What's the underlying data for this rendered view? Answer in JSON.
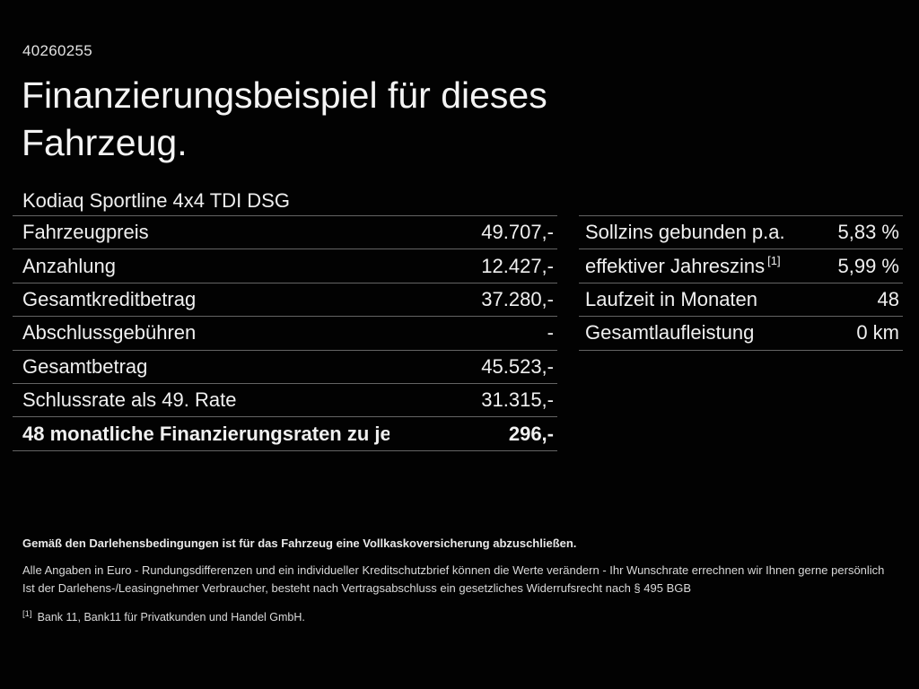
{
  "page": {
    "doc_id": "40260255",
    "title": "Finanzierungsbeispiel für dieses Fahrzeug.",
    "vehicle": "Kodiaq Sportline 4x4 TDI DSG"
  },
  "left_table": {
    "rows": [
      {
        "label": "Fahrzeugpreis",
        "value": "49.707,-"
      },
      {
        "label": "Anzahlung",
        "value": "12.427,-"
      },
      {
        "label": "Gesamtkreditbetrag",
        "value": "37.280,-"
      },
      {
        "label": "Abschlussgebühren",
        "value": "-"
      },
      {
        "label": "Gesamtbetrag",
        "value": "45.523,-"
      },
      {
        "label": "Schlussrate als 49. Rate",
        "value": "31.315,-"
      },
      {
        "label": "48 monatliche Finanzierungsraten zu je",
        "value": "296,-"
      }
    ]
  },
  "right_table": {
    "rows": [
      {
        "label": "Sollzins gebunden p.a.",
        "sup": "",
        "value": "5,83 %"
      },
      {
        "label": "effektiver Jahreszins",
        "sup": "[1]",
        "value": "5,99 %"
      },
      {
        "label": "Laufzeit in Monaten",
        "sup": "",
        "value": "48"
      },
      {
        "label": "Gesamtlaufleistung",
        "sup": "",
        "value": "0 km"
      }
    ]
  },
  "footer": {
    "insurance_note": "Gemäß den Darlehensbedingungen ist für das Fahrzeug eine Vollkaskoversicherung abzuschließen.",
    "disclaimer_line1": "Alle Angaben in Euro - Rundungsdifferenzen und ein individueller Kreditschutzbrief können die Werte verändern - Ihr Wunschrate errechnen wir Ihnen gerne persönlich",
    "disclaimer_line2": "Ist der Darlehens-/Leasingnehmer Verbraucher, besteht nach Vertragsabschluss ein gesetzliches Widerrufsrecht nach § 495 BGB",
    "footnote_marker": "[1]",
    "footnote_text": "Bank 11, Bank11 für Privatkunden und Handel GmbH."
  },
  "colors": {
    "background": "#020202",
    "text": "#f2f2f2",
    "divider": "#646464"
  }
}
